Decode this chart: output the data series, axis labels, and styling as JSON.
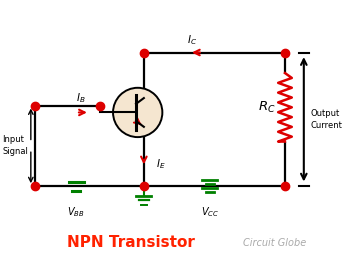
{
  "bg_color": "#ffffff",
  "wire_color": "#000000",
  "green_color": "#008000",
  "red_color": "#dd0000",
  "dot_color": "#dd0000",
  "resistor_color": "#dd0000",
  "transistor_fill": "#f5e6d0",
  "transistor_edge": "#000000",
  "title": "NPN Transistor",
  "title_color": "#ff2200",
  "title_fontsize": 11,
  "subtitle": "Circuit Globe",
  "subtitle_color": "#aaaaaa",
  "subtitle_fontsize": 7,
  "label_input": "Input\nSignal",
  "label_output": "Output\nCurrent",
  "figsize": [
    3.5,
    2.66
  ],
  "dpi": 100
}
